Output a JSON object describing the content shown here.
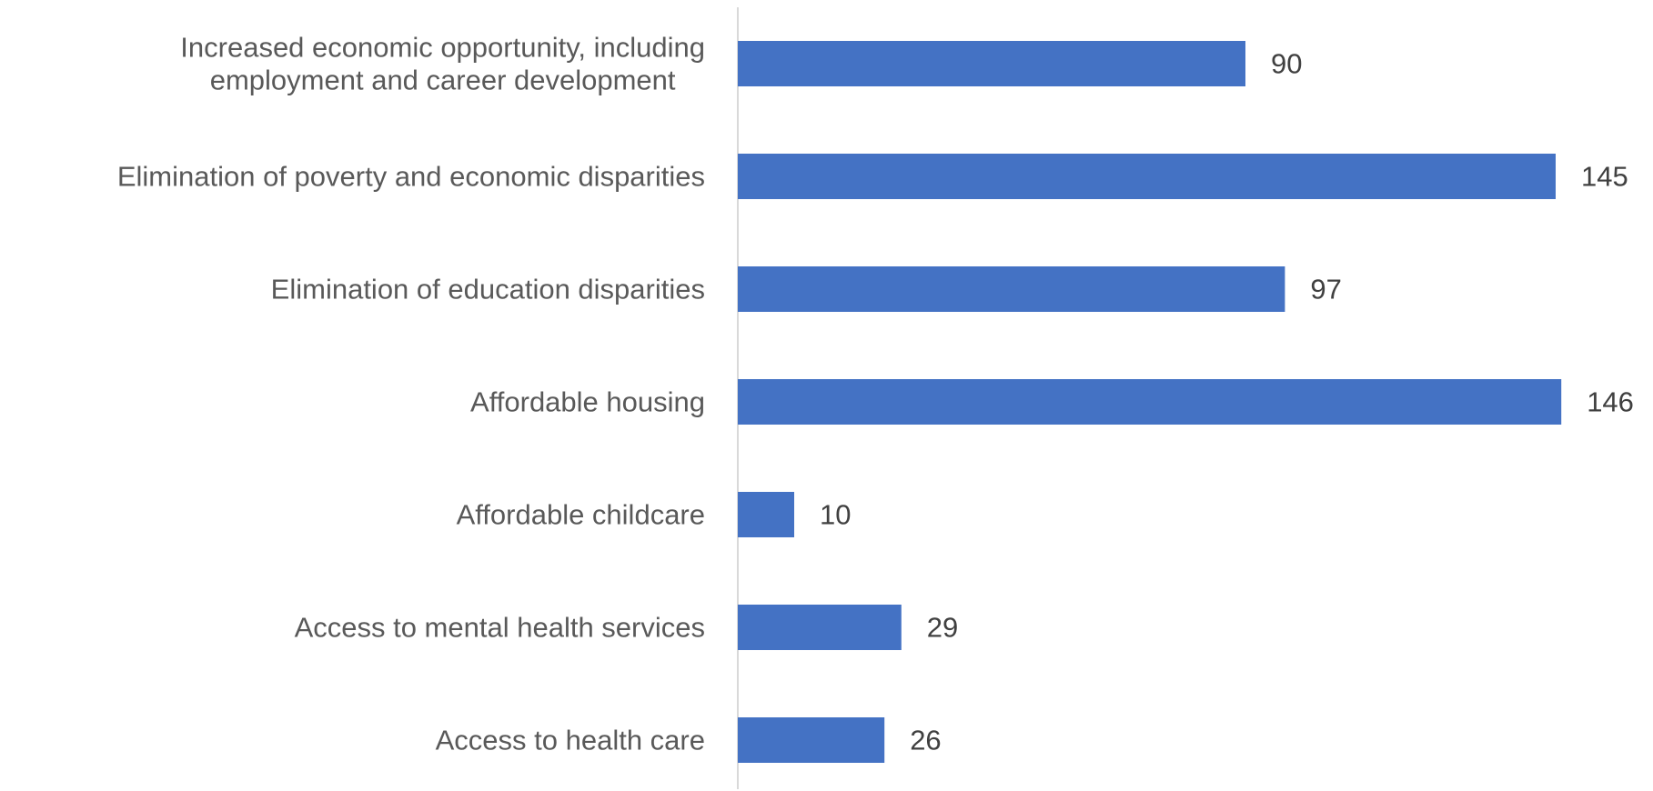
{
  "chart_data": {
    "type": "bar",
    "orientation": "horizontal",
    "categories": [
      [
        "Increased economic opportunity, including",
        "employment and career development"
      ],
      [
        "Elimination of poverty and economic disparities"
      ],
      [
        "Elimination of education disparities"
      ],
      [
        "Affordable housing"
      ],
      [
        "Affordable childcare"
      ],
      [
        "Access to mental health services"
      ],
      [
        "Access to health care"
      ]
    ],
    "values": [
      90,
      145,
      97,
      146,
      10,
      29,
      26
    ],
    "data_labels": [
      "90",
      "145",
      "97",
      "146",
      "10",
      "29",
      "26"
    ],
    "xlim": [
      0,
      160
    ],
    "grid": false,
    "legend": "none",
    "bar_color": "#4472C4",
    "axis_color": "#d9d9d9"
  }
}
